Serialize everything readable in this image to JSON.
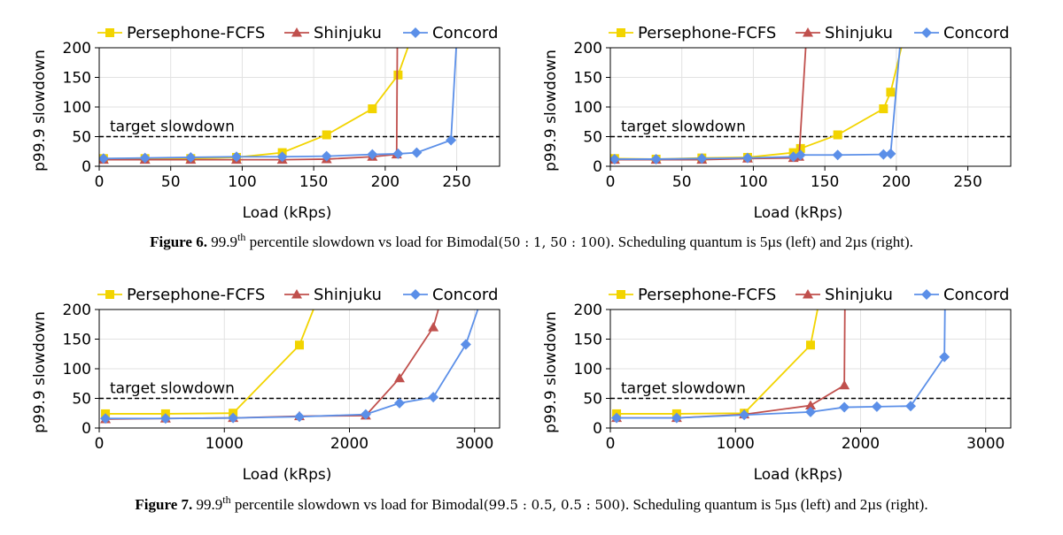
{
  "legend": {
    "persephone": "Persephone-FCFS",
    "shinjuku": "Shinjuku",
    "concord": "Concord"
  },
  "colors": {
    "persephone": "#f2d400",
    "shinjuku": "#c0504d",
    "concord": "#5b8fe8"
  },
  "target_label": "target slowdown",
  "captions": {
    "fig6": {
      "label": "Figure 6.",
      "pre": " 99.9",
      "sup": "th",
      "mid": " percentile slowdown vs load for Bimodal",
      "params": "(50 : 1, 50 : 100)",
      "post": ". Scheduling quantum is 5µs (left) and 2µs (right)."
    },
    "fig7": {
      "label": "Figure 7.",
      "pre": " 99.9",
      "sup": "th",
      "mid": " percentile slowdown vs load for Bimodal",
      "params": "(99.5 : 0.5, 0.5 : 500)",
      "post": ". Scheduling quantum is 5µs (left) and 2µs (right)."
    }
  },
  "chart_data": [
    {
      "type": "line",
      "figure": "6",
      "panel": "left",
      "xlabel": "Load (kRps)",
      "ylabel": "p99.9 slowdown",
      "xlim": [
        0,
        280
      ],
      "ylim": [
        0,
        200
      ],
      "xticks": [
        0,
        50,
        100,
        150,
        200,
        250
      ],
      "yticks": [
        0,
        50,
        100,
        150,
        200
      ],
      "target": 50,
      "grid": true,
      "legend_position": "top",
      "series": [
        {
          "name": "Persephone-FCFS",
          "key": "persephone",
          "x": [
            3,
            32,
            64,
            96,
            128,
            159,
            191,
            209,
            218
          ],
          "y": [
            13,
            13,
            13,
            15,
            23,
            53,
            97,
            154,
            215
          ]
        },
        {
          "name": "Shinjuku",
          "key": "shinjuku",
          "x": [
            3,
            32,
            64,
            96,
            128,
            159,
            191,
            208,
            208.5
          ],
          "y": [
            11,
            11,
            11,
            11,
            11,
            12,
            16,
            20,
            215
          ]
        },
        {
          "name": "Concord",
          "key": "concord",
          "x": [
            3,
            32,
            64,
            96,
            128,
            159,
            191,
            209,
            222,
            246,
            250
          ],
          "y": [
            13,
            14,
            15,
            16,
            16,
            17,
            20,
            21,
            23,
            44,
            215
          ]
        }
      ]
    },
    {
      "type": "line",
      "figure": "6",
      "panel": "right",
      "xlabel": "Load (kRps)",
      "ylabel": "p99.9 slowdown",
      "xlim": [
        0,
        280
      ],
      "ylim": [
        0,
        200
      ],
      "xticks": [
        0,
        50,
        100,
        150,
        200,
        250
      ],
      "yticks": [
        0,
        50,
        100,
        150,
        200
      ],
      "target": 50,
      "grid": true,
      "legend_position": "top",
      "series": [
        {
          "name": "Persephone-FCFS",
          "key": "persephone",
          "x": [
            3,
            32,
            64,
            96,
            128,
            133,
            159,
            191,
            196,
            205
          ],
          "y": [
            13,
            12,
            14,
            15,
            23,
            30,
            53,
            97,
            125,
            215
          ]
        },
        {
          "name": "Shinjuku",
          "key": "shinjuku",
          "x": [
            3,
            32,
            64,
            96,
            128,
            132,
            137
          ],
          "y": [
            11,
            11,
            11,
            13,
            14,
            16,
            215
          ]
        },
        {
          "name": "Concord",
          "key": "concord",
          "x": [
            3,
            32,
            64,
            96,
            128,
            133,
            159,
            191,
            196,
            203
          ],
          "y": [
            12,
            12,
            13,
            14,
            16,
            19,
            19,
            20,
            21,
            215
          ]
        }
      ]
    },
    {
      "type": "line",
      "figure": "7",
      "panel": "left",
      "xlabel": "Load (kRps)",
      "ylabel": "p99.9 slowdown",
      "xlim": [
        0,
        3200
      ],
      "ylim": [
        0,
        200
      ],
      "xticks": [
        0,
        1000,
        2000,
        3000
      ],
      "yticks": [
        0,
        50,
        100,
        150,
        200
      ],
      "target": 50,
      "grid": true,
      "legend_position": "top",
      "series": [
        {
          "name": "Persephone-FCFS",
          "key": "persephone",
          "x": [
            50,
            530,
            1070,
            1600,
            1740
          ],
          "y": [
            24,
            24,
            25,
            140,
            215
          ]
        },
        {
          "name": "Shinjuku",
          "key": "shinjuku",
          "x": [
            50,
            530,
            1070,
            1600,
            2130,
            2400,
            2670,
            2730
          ],
          "y": [
            15,
            16,
            17,
            20,
            21,
            84,
            170,
            215
          ]
        },
        {
          "name": "Concord",
          "key": "concord",
          "x": [
            50,
            530,
            1070,
            1600,
            2130,
            2400,
            2670,
            2930,
            3050
          ],
          "y": [
            16,
            16,
            17,
            19,
            23,
            42,
            52,
            141,
            215
          ]
        }
      ]
    },
    {
      "type": "line",
      "figure": "7",
      "panel": "right",
      "xlabel": "Load (kRps)",
      "ylabel": "p99.9 slowdown",
      "xlim": [
        0,
        3200
      ],
      "ylim": [
        0,
        200
      ],
      "xticks": [
        0,
        1000,
        2000,
        3000
      ],
      "yticks": [
        0,
        50,
        100,
        150,
        200
      ],
      "target": 50,
      "grid": true,
      "legend_position": "top",
      "series": [
        {
          "name": "Persephone-FCFS",
          "key": "persephone",
          "x": [
            50,
            530,
            1070,
            1600,
            1670
          ],
          "y": [
            24,
            24,
            25,
            140,
            215
          ]
        },
        {
          "name": "Shinjuku",
          "key": "shinjuku",
          "x": [
            50,
            530,
            1070,
            1600,
            1870,
            1875
          ],
          "y": [
            17,
            17,
            23,
            38,
            72,
            215
          ]
        },
        {
          "name": "Concord",
          "key": "concord",
          "x": [
            50,
            530,
            1070,
            1600,
            1870,
            2130,
            2400,
            2670,
            2675
          ],
          "y": [
            17,
            17,
            22,
            27,
            35,
            36,
            37,
            120,
            215
          ]
        }
      ]
    }
  ]
}
